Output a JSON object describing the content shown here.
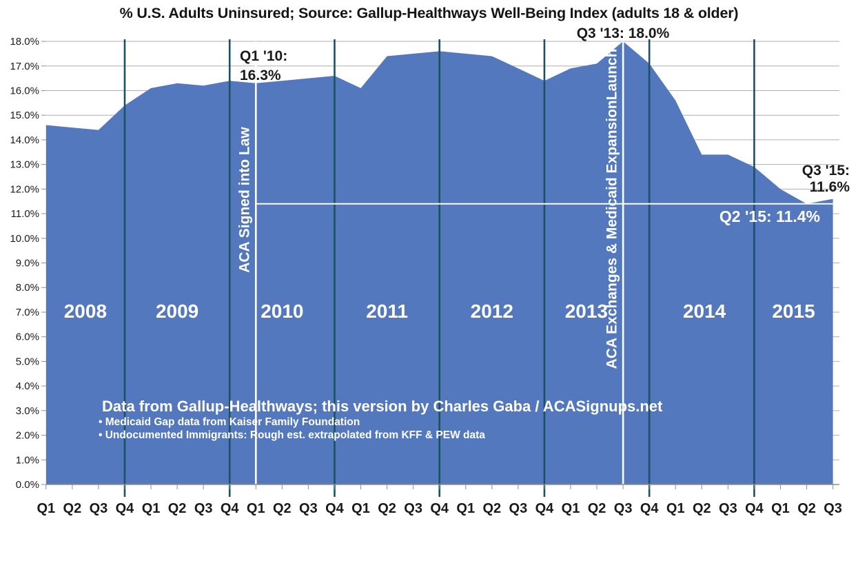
{
  "title": "% U.S. Adults Uninsured; Source: Gallup-Healthways Well-Being Index (adults 18 & older)",
  "chart_data": {
    "type": "area",
    "title": "% U.S. Adults Uninsured; Source: Gallup-Healthways Well-Being Index (adults 18 & older)",
    "xlabel": "",
    "ylabel": "",
    "ylim": [
      0,
      18
    ],
    "grid": true,
    "x_tick_labels": [
      "Q1",
      "Q2",
      "Q3",
      "Q4",
      "Q1",
      "Q2",
      "Q3",
      "Q4",
      "Q1",
      "Q2",
      "Q3",
      "Q4",
      "Q1",
      "Q2",
      "Q3",
      "Q4",
      "Q1",
      "Q2",
      "Q3",
      "Q4",
      "Q1",
      "Q2",
      "Q3",
      "Q4",
      "Q1",
      "Q2",
      "Q3",
      "Q4",
      "Q1",
      "Q2",
      "Q3"
    ],
    "y_tick_labels": [
      "0.0%",
      "1.0%",
      "2.0%",
      "3.0%",
      "4.0%",
      "5.0%",
      "6.0%",
      "7.0%",
      "8.0%",
      "9.0%",
      "10.0%",
      "11.0%",
      "12.0%",
      "13.0%",
      "14.0%",
      "15.0%",
      "16.0%",
      "17.0%",
      "18.0%"
    ],
    "series": [
      {
        "name": "% U.S. Adults Uninsured",
        "values": [
          14.6,
          14.5,
          14.4,
          15.4,
          16.1,
          16.3,
          16.2,
          16.4,
          16.3,
          16.4,
          16.5,
          16.6,
          16.1,
          17.4,
          17.5,
          17.6,
          17.5,
          17.4,
          16.9,
          16.4,
          16.9,
          17.1,
          18.0,
          17.1,
          15.6,
          13.4,
          13.4,
          12.9,
          12.0,
          11.4,
          11.6
        ]
      }
    ],
    "quarters_start": "2008 Q1",
    "quarters_end": "2015 Q3",
    "year_labels": [
      "2008",
      "2009",
      "2010",
      "2011",
      "2012",
      "2013",
      "2014",
      "2015"
    ],
    "year_boundary_indices": [
      3,
      7,
      11,
      15,
      19,
      23,
      27
    ],
    "event_lines": [
      {
        "index": 8,
        "label": "ACA Signed into Law"
      },
      {
        "index": 22,
        "label": "ACA Exchanges & Medicaid ExpansionLaunch"
      }
    ],
    "reference_line": {
      "value": 11.4,
      "from_index": 8,
      "label": "Q2 '15: 11.4%"
    },
    "point_annotations": [
      {
        "index": 8,
        "lines": [
          "Q1 '10:",
          "16.3%"
        ]
      },
      {
        "index": 22,
        "lines": [
          "Q3 '13: 18.0%"
        ]
      },
      {
        "index": 30,
        "lines": [
          "Q3 '15:",
          "11.6%"
        ]
      }
    ],
    "source_notes": [
      "Data from Gallup-Healthways; this version by Charles Gaba / ACASignups.net",
      "• Medicaid Gap data from Kaiser Family Foundation",
      "• Undocumented Immigrants: Rough est. extrapolated from KFF & PEW data"
    ],
    "colors": {
      "area_fill": "#5478BD",
      "year_line": "#1B5163",
      "event_line": "#FFFFFF",
      "reference_line": "#FFFFFF",
      "gridline": "#AFAFAF",
      "axis": "#8E8E8E",
      "text_dark": "#1A1A1A",
      "text_light": "#FFFFFF",
      "background": "#FFFFFF"
    },
    "legend": null
  }
}
